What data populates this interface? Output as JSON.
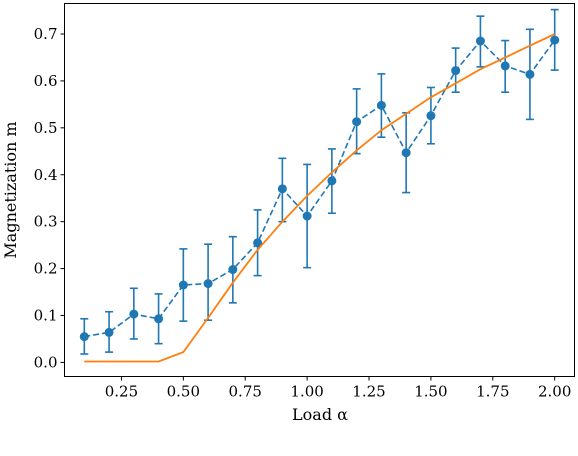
{
  "chart_data": {
    "type": "line",
    "xlabel": "Load α",
    "ylabel": "Magnetization m",
    "xlim": [
      0.02,
      2.08
    ],
    "ylim": [
      -0.03,
      0.765
    ],
    "xticks": [
      "0.25",
      "0.50",
      "0.75",
      "1.00",
      "1.25",
      "1.50",
      "1.75",
      "2.00"
    ],
    "yticks": [
      "0.0",
      "0.1",
      "0.2",
      "0.3",
      "0.4",
      "0.5",
      "0.6",
      "0.7"
    ],
    "grid": false,
    "series": [
      {
        "style": "dashed-markers-errorbars",
        "color": "#1f77b4",
        "x": [
          0.1,
          0.2,
          0.3,
          0.4,
          0.5,
          0.6,
          0.7,
          0.8,
          0.9,
          1.0,
          1.1,
          1.2,
          1.3,
          1.4,
          1.5,
          1.6,
          1.7,
          1.8,
          1.9,
          2.0
        ],
        "y": [
          0.055,
          0.064,
          0.103,
          0.093,
          0.165,
          0.168,
          0.198,
          0.255,
          0.37,
          0.312,
          0.387,
          0.513,
          0.548,
          0.447,
          0.526,
          0.622,
          0.685,
          0.632,
          0.614,
          0.687
        ],
        "yerr_low": [
          0.018,
          0.022,
          0.05,
          0.04,
          0.088,
          0.09,
          0.127,
          0.185,
          0.3,
          0.202,
          0.318,
          0.445,
          0.48,
          0.362,
          0.466,
          0.576,
          0.63,
          0.576,
          0.518,
          0.623
        ],
        "yerr_high": [
          0.093,
          0.108,
          0.158,
          0.146,
          0.242,
          0.252,
          0.268,
          0.325,
          0.435,
          0.422,
          0.455,
          0.583,
          0.615,
          0.532,
          0.586,
          0.67,
          0.738,
          0.686,
          0.71,
          0.752
        ]
      },
      {
        "style": "solid",
        "color": "#ff7f0e",
        "x": [
          0.1,
          0.2,
          0.3,
          0.4,
          0.5,
          0.6,
          0.7,
          0.8,
          0.9,
          1.0,
          1.1,
          1.2,
          1.3,
          1.4,
          1.5,
          1.6,
          1.7,
          1.8,
          1.9,
          2.0
        ],
        "y": [
          0.002,
          0.002,
          0.002,
          0.002,
          0.022,
          0.095,
          0.17,
          0.24,
          0.3,
          0.355,
          0.405,
          0.452,
          0.495,
          0.53,
          0.565,
          0.595,
          0.625,
          0.65,
          0.675,
          0.7
        ]
      }
    ]
  }
}
